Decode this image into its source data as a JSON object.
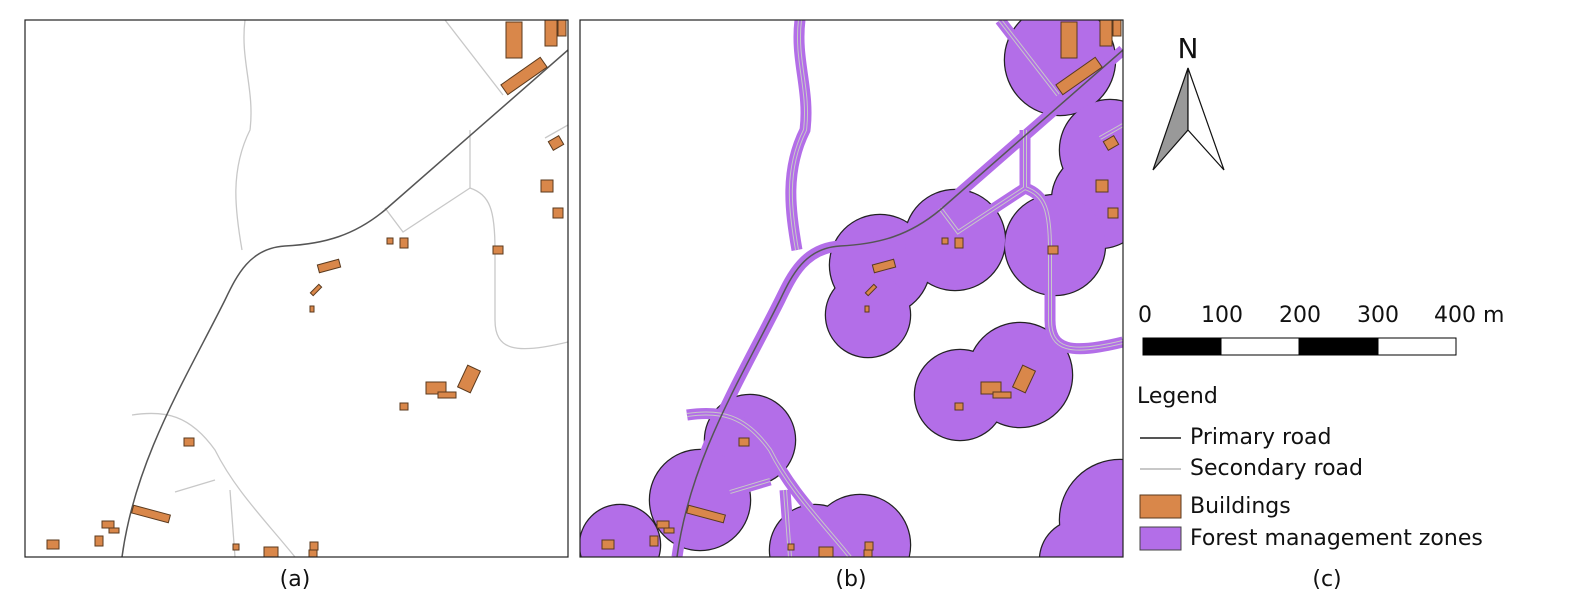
{
  "panels": [
    {
      "label": "(a)"
    },
    {
      "label": "(b)"
    },
    {
      "label": "(c)"
    }
  ],
  "north": "N",
  "scale_bar": {
    "labels": [
      "0",
      "100",
      "200",
      "300",
      "400 m"
    ]
  },
  "legend": {
    "title": "Legend",
    "items": [
      "Primary road",
      "Secondary road",
      "Buildings",
      "Forest management zones"
    ]
  }
}
